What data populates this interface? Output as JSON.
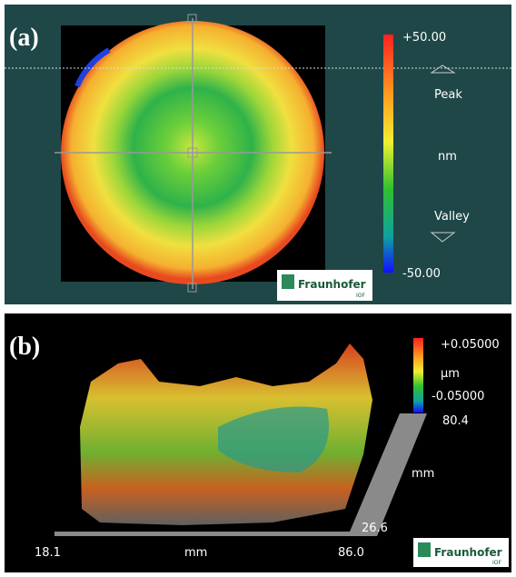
{
  "panel_a": {
    "label": "(a)",
    "scale_max": "+50.00",
    "peak": "Peak",
    "unit": "nm",
    "valley": "Valley",
    "scale_min": "-50.00",
    "logo": "Fraunhofer",
    "logo_sub": "IOF"
  },
  "panel_b": {
    "label": "(b)",
    "scale_max": "+0.05000",
    "unit": "µm",
    "scale_min": "-0.05000",
    "y_max": "80.4",
    "y_unit": "mm",
    "y_min": "26.6",
    "x_min": "18.1",
    "x_unit": "mm",
    "x_max": "86.0",
    "logo": "Fraunhofer",
    "logo_sub": "IOF"
  }
}
